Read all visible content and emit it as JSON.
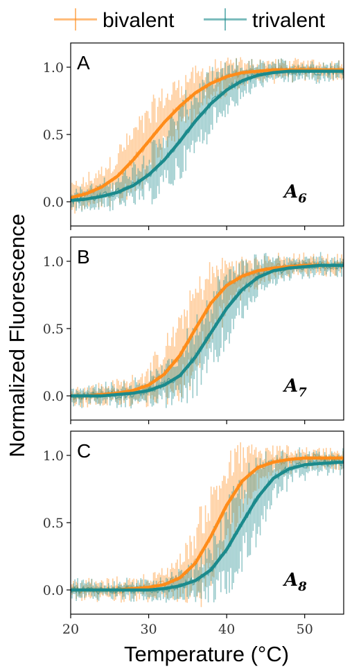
{
  "chart_data": {
    "type": "line",
    "xlabel": "Temperature (°C)",
    "ylabel": "Normalized Fluorescence",
    "xlim": [
      20,
      55
    ],
    "ylim": [
      -0.18,
      1.18
    ],
    "xticks": [
      20,
      30,
      40,
      50
    ],
    "xtick_labels": [
      "20",
      "30",
      "40",
      "50"
    ],
    "yticks": [
      0.0,
      0.5,
      1.0
    ],
    "ytick_labels": [
      "0.0",
      "0.5",
      "1.0"
    ],
    "grid": false,
    "legend_position": "top, outside",
    "colors": {
      "bivalent": "#ff8c1a",
      "trivalent": "#1b8a8c"
    },
    "legend": [
      {
        "label": "bivalent",
        "color": "#ff8c1a"
      },
      {
        "label": "trivalent",
        "color": "#1b8a8c"
      }
    ],
    "panels": [
      {
        "letter": "A",
        "compound": "A",
        "compound_sub": "6",
        "fits": [
          {
            "name": "bivalent",
            "x": [
              20,
              22,
              24,
              26,
              28,
              30,
              32,
              34,
              36,
              38,
              40,
              42,
              44,
              46,
              48,
              50,
              52,
              55
            ],
            "y": [
              0.03,
              0.06,
              0.11,
              0.19,
              0.31,
              0.45,
              0.59,
              0.71,
              0.81,
              0.88,
              0.93,
              0.96,
              0.97,
              0.98,
              0.98,
              0.98,
              0.98,
              0.98
            ]
          },
          {
            "name": "trivalent",
            "x": [
              20,
              22,
              24,
              26,
              28,
              30,
              32,
              34,
              36,
              38,
              40,
              42,
              44,
              46,
              48,
              50,
              52,
              55
            ],
            "y": [
              0.01,
              0.02,
              0.04,
              0.07,
              0.12,
              0.2,
              0.31,
              0.45,
              0.6,
              0.73,
              0.83,
              0.9,
              0.94,
              0.96,
              0.97,
              0.97,
              0.97,
              0.97
            ]
          }
        ]
      },
      {
        "letter": "B",
        "compound": "A",
        "compound_sub": "7",
        "fits": [
          {
            "name": "bivalent",
            "x": [
              20,
              22,
              24,
              26,
              28,
              30,
              32,
              34,
              36,
              38,
              40,
              42,
              44,
              46,
              48,
              50,
              52,
              55
            ],
            "y": [
              0.0,
              0.0,
              0.01,
              0.02,
              0.04,
              0.08,
              0.16,
              0.3,
              0.5,
              0.69,
              0.82,
              0.89,
              0.93,
              0.95,
              0.96,
              0.97,
              0.97,
              0.97
            ]
          },
          {
            "name": "trivalent",
            "x": [
              20,
              22,
              24,
              26,
              28,
              30,
              32,
              34,
              36,
              38,
              40,
              42,
              44,
              46,
              48,
              50,
              52,
              55
            ],
            "y": [
              0.0,
              0.0,
              0.0,
              0.01,
              0.02,
              0.04,
              0.08,
              0.15,
              0.29,
              0.47,
              0.65,
              0.79,
              0.88,
              0.93,
              0.95,
              0.96,
              0.97,
              0.97
            ]
          }
        ]
      },
      {
        "letter": "C",
        "compound": "A",
        "compound_sub": "8",
        "fits": [
          {
            "name": "bivalent",
            "x": [
              20,
              22,
              24,
              26,
              28,
              30,
              32,
              34,
              36,
              38,
              40,
              42,
              44,
              46,
              48,
              50,
              52,
              55
            ],
            "y": [
              0.0,
              0.0,
              0.0,
              0.0,
              0.01,
              0.02,
              0.04,
              0.09,
              0.2,
              0.4,
              0.63,
              0.81,
              0.91,
              0.95,
              0.97,
              0.98,
              0.98,
              0.98
            ]
          },
          {
            "name": "trivalent",
            "x": [
              20,
              22,
              24,
              26,
              28,
              30,
              32,
              34,
              36,
              38,
              40,
              42,
              44,
              46,
              48,
              50,
              52,
              55
            ],
            "y": [
              0.0,
              0.0,
              0.0,
              0.0,
              0.0,
              0.0,
              0.01,
              0.03,
              0.07,
              0.15,
              0.3,
              0.5,
              0.69,
              0.83,
              0.9,
              0.93,
              0.94,
              0.95
            ]
          }
        ]
      }
    ]
  }
}
